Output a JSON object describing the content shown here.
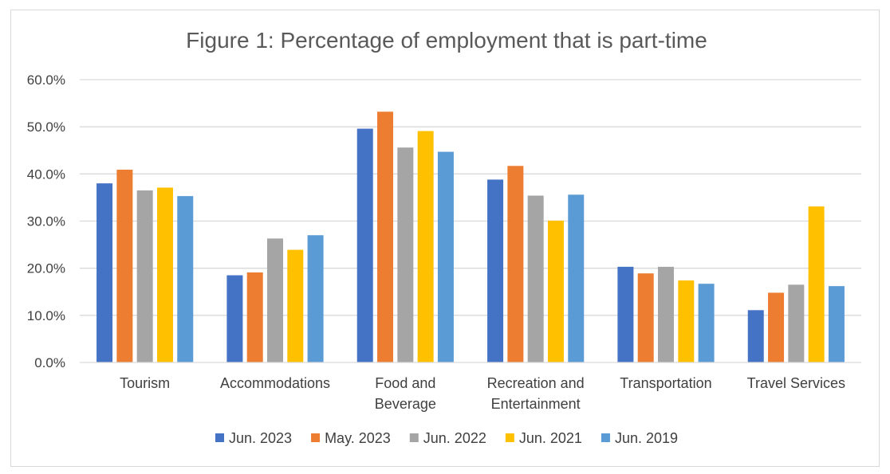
{
  "chart_data": {
    "type": "bar",
    "title": "Figure 1: Percentage of employment that is part-time",
    "xlabel": "",
    "ylabel": "",
    "ylim": [
      0,
      60
    ],
    "y_ticks": [
      "0.0%",
      "10.0%",
      "20.0%",
      "30.0%",
      "40.0%",
      "50.0%",
      "60.0%"
    ],
    "y_tick_values": [
      0,
      10,
      20,
      30,
      40,
      50,
      60
    ],
    "categories": [
      [
        "Tourism"
      ],
      [
        "Accommodations"
      ],
      [
        "Food and",
        "Beverage"
      ],
      [
        "Recreation and",
        "Entertainment"
      ],
      [
        "Transportation"
      ],
      [
        "Travel Services"
      ]
    ],
    "series": [
      {
        "name": "Jun. 2023",
        "color": "#4472C4",
        "values": [
          38.0,
          18.5,
          49.6,
          38.8,
          20.3,
          11.1
        ]
      },
      {
        "name": "May. 2023",
        "color": "#ED7D31",
        "values": [
          40.9,
          19.1,
          53.2,
          41.7,
          18.9,
          14.8
        ]
      },
      {
        "name": "Jun. 2022",
        "color": "#A5A5A5",
        "values": [
          36.5,
          26.3,
          45.6,
          35.4,
          20.3,
          16.5
        ]
      },
      {
        "name": "Jun. 2021",
        "color": "#FFC000",
        "values": [
          37.1,
          23.9,
          49.1,
          30.1,
          17.4,
          33.1
        ]
      },
      {
        "name": "Jun. 2019",
        "color": "#5B9BD5",
        "values": [
          35.3,
          27.0,
          44.7,
          35.6,
          16.7,
          16.2
        ]
      }
    ],
    "grid": true,
    "legend_position": "bottom",
    "gridline_color": "#d9d9d9"
  }
}
